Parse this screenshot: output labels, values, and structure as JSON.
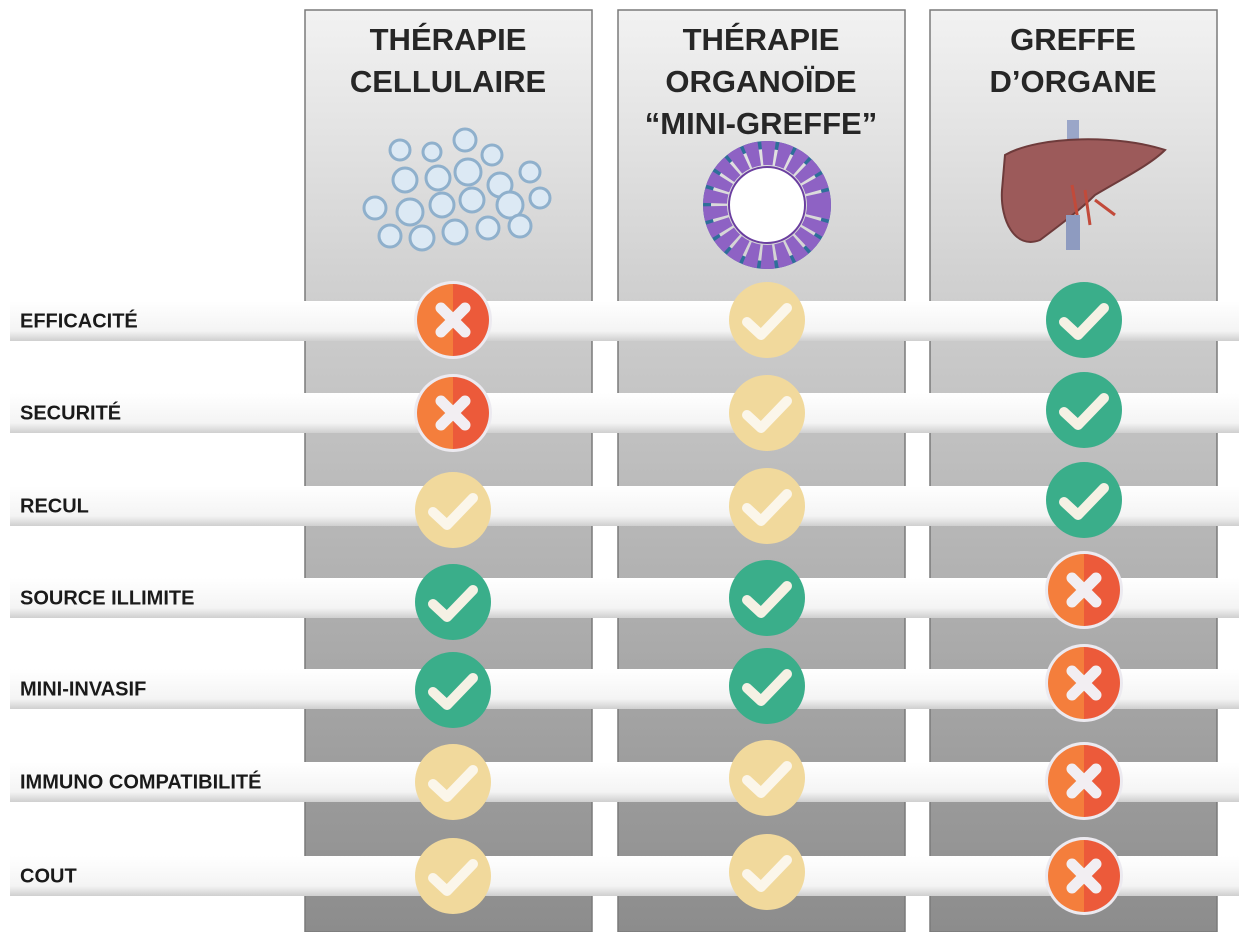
{
  "columns": [
    {
      "title_lines": [
        "THÉRAPIE",
        "CELLULAIRE"
      ]
    },
    {
      "title_lines": [
        "THÉRAPIE",
        "ORGANOÏDE",
        "“MINI-GREFFE”"
      ]
    },
    {
      "title_lines": [
        "GREFFE",
        "D’ORGANE"
      ]
    }
  ],
  "rows": [
    {
      "label": "EFFICACITÉ"
    },
    {
      "label": "SECURITÉ"
    },
    {
      "label": "RECUL"
    },
    {
      "label": "SOURCE ILLIMITE"
    },
    {
      "label": "MINI-INVASIF"
    },
    {
      "label": "IMMUNO COMPATIBILITÉ"
    },
    {
      "label": "COUT"
    }
  ]
}
